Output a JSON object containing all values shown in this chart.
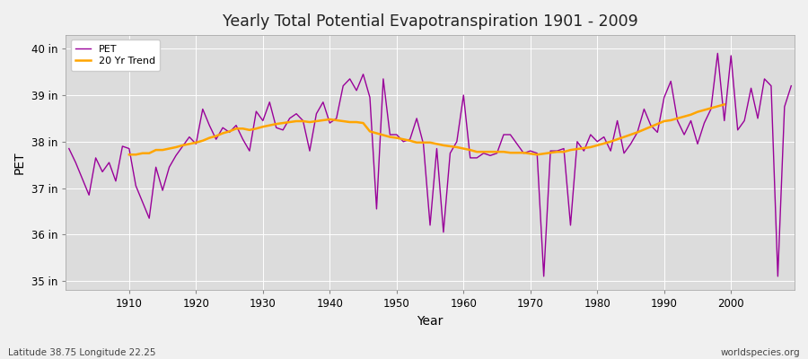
{
  "title": "Yearly Total Potential Evapotranspiration 1901 - 2009",
  "xlabel": "Year",
  "ylabel": "PET",
  "bottom_left_label": "Latitude 38.75 Longitude 22.25",
  "bottom_right_label": "worldspecies.org",
  "ylim": [
    34.8,
    40.3
  ],
  "yticks": [
    35,
    36,
    37,
    38,
    39,
    40
  ],
  "ytick_labels": [
    "35 in",
    "36 in",
    "37 in",
    "38 in",
    "39 in",
    "40 in"
  ],
  "xticks": [
    1910,
    1920,
    1930,
    1940,
    1950,
    1960,
    1970,
    1980,
    1990,
    2000
  ],
  "xlim": [
    1900.5,
    2009.5
  ],
  "pet_color": "#990099",
  "trend_color": "#FFA500",
  "plot_bg_color": "#DCDCDC",
  "fig_bg_color": "#F0F0F0",
  "pet_linewidth": 1.0,
  "trend_linewidth": 1.8,
  "years": [
    1901,
    1902,
    1903,
    1904,
    1905,
    1906,
    1907,
    1908,
    1909,
    1910,
    1911,
    1912,
    1913,
    1914,
    1915,
    1916,
    1917,
    1918,
    1919,
    1920,
    1921,
    1922,
    1923,
    1924,
    1925,
    1926,
    1927,
    1928,
    1929,
    1930,
    1931,
    1932,
    1933,
    1934,
    1935,
    1936,
    1937,
    1938,
    1939,
    1940,
    1941,
    1942,
    1943,
    1944,
    1945,
    1946,
    1947,
    1948,
    1949,
    1950,
    1951,
    1952,
    1953,
    1954,
    1955,
    1956,
    1957,
    1958,
    1959,
    1960,
    1961,
    1962,
    1963,
    1964,
    1965,
    1966,
    1967,
    1968,
    1969,
    1970,
    1971,
    1972,
    1973,
    1974,
    1975,
    1976,
    1977,
    1978,
    1979,
    1980,
    1981,
    1982,
    1983,
    1984,
    1985,
    1986,
    1987,
    1988,
    1989,
    1990,
    1991,
    1992,
    1993,
    1994,
    1995,
    1996,
    1997,
    1998,
    1999,
    2000,
    2001,
    2002,
    2003,
    2004,
    2005,
    2006,
    2007,
    2008,
    2009
  ],
  "pet_values": [
    37.85,
    37.55,
    37.2,
    36.85,
    37.65,
    37.35,
    37.55,
    37.15,
    37.9,
    37.85,
    37.05,
    36.7,
    36.35,
    37.45,
    36.95,
    37.45,
    37.7,
    37.9,
    38.1,
    37.95,
    38.7,
    38.35,
    38.05,
    38.3,
    38.2,
    38.35,
    38.05,
    37.8,
    38.65,
    38.45,
    38.85,
    38.3,
    38.25,
    38.5,
    38.6,
    38.45,
    37.8,
    38.6,
    38.85,
    38.4,
    38.5,
    39.2,
    39.35,
    39.1,
    39.45,
    38.95,
    36.55,
    39.35,
    38.15,
    38.15,
    38.0,
    38.05,
    38.5,
    37.95,
    36.2,
    37.85,
    36.05,
    37.75,
    38.0,
    39.0,
    37.65,
    37.65,
    37.75,
    37.7,
    37.75,
    38.15,
    38.15,
    37.95,
    37.75,
    37.8,
    37.75,
    35.1,
    37.8,
    37.8,
    37.85,
    36.2,
    38.0,
    37.8,
    38.15,
    38.0,
    38.1,
    37.8,
    38.45,
    37.75,
    37.95,
    38.2,
    38.7,
    38.35,
    38.2,
    38.95,
    39.3,
    38.45,
    38.15,
    38.45,
    37.95,
    38.4,
    38.7,
    39.9,
    38.45,
    39.85,
    38.25,
    38.45,
    39.15,
    38.5,
    39.35,
    39.2,
    35.1,
    38.75,
    39.2
  ],
  "trend_years": [
    1910,
    1911,
    1912,
    1913,
    1914,
    1915,
    1916,
    1917,
    1918,
    1919,
    1920,
    1921,
    1922,
    1923,
    1924,
    1925,
    1926,
    1927,
    1928,
    1929,
    1930,
    1931,
    1932,
    1933,
    1934,
    1935,
    1936,
    1937,
    1938,
    1939,
    1940,
    1941,
    1942,
    1943,
    1944,
    1945,
    1946,
    1947,
    1948,
    1949,
    1950,
    1951,
    1952,
    1953,
    1954,
    1955,
    1956,
    1957,
    1958,
    1959,
    1960,
    1961,
    1962,
    1963,
    1964,
    1965,
    1966,
    1967,
    1968,
    1969,
    1970,
    1971,
    1972,
    1973,
    1974,
    1975,
    1976,
    1977,
    1978,
    1979,
    1980,
    1981,
    1982,
    1983,
    1984,
    1985,
    1986,
    1987,
    1988,
    1989,
    1990,
    1991,
    1992,
    1993,
    1994,
    1995,
    1996,
    1997,
    1998,
    1999
  ],
  "trend_values": [
    37.72,
    37.72,
    37.75,
    37.75,
    37.82,
    37.82,
    37.85,
    37.88,
    37.92,
    37.95,
    37.98,
    38.02,
    38.08,
    38.12,
    38.18,
    38.22,
    38.28,
    38.28,
    38.25,
    38.28,
    38.32,
    38.35,
    38.38,
    38.4,
    38.42,
    38.44,
    38.44,
    38.42,
    38.44,
    38.46,
    38.48,
    38.46,
    38.44,
    38.42,
    38.42,
    38.4,
    38.22,
    38.18,
    38.14,
    38.1,
    38.08,
    38.05,
    38.02,
    37.98,
    37.98,
    37.98,
    37.95,
    37.92,
    37.9,
    37.88,
    37.85,
    37.82,
    37.78,
    37.78,
    37.78,
    37.78,
    37.78,
    37.76,
    37.76,
    37.76,
    37.74,
    37.72,
    37.74,
    37.76,
    37.78,
    37.78,
    37.82,
    37.84,
    37.86,
    37.88,
    37.92,
    37.96,
    38.0,
    38.05,
    38.1,
    38.15,
    38.2,
    38.26,
    38.32,
    38.38,
    38.44,
    38.46,
    38.5,
    38.54,
    38.58,
    38.64,
    38.68,
    38.72,
    38.76,
    38.8
  ]
}
